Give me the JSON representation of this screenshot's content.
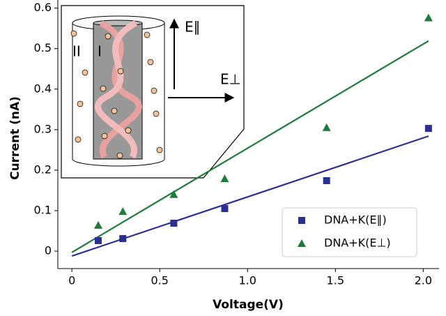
{
  "chart_data": {
    "type": "scatter",
    "xlabel": "Voltage(V)",
    "ylabel": "Current (nA)",
    "xlim": [
      -0.08,
      2.09
    ],
    "ylim": [
      -0.043,
      0.62
    ],
    "xticks": [
      0,
      0.5,
      {
        "value": 1,
        "label": "1.0"
      },
      1.5,
      {
        "value": 2,
        "label": "2.0"
      }
    ],
    "yticks": [
      0,
      0.1,
      0.2,
      0.3,
      0.4,
      0.5,
      0.6
    ],
    "legend": "lower right",
    "series": [
      {
        "name": "DNA+K(E∥)",
        "color": "#2b2f8f",
        "marker": "square",
        "x": [
          0.15,
          0.29,
          0.58,
          0.87,
          1.45,
          2.03
        ],
        "values": [
          0.026,
          0.031,
          0.069,
          0.105,
          0.174,
          0.303
        ]
      },
      {
        "name": "DNA+K(E⊥)",
        "color": "#1e7b3a",
        "marker": "triangle",
        "x": [
          0.15,
          0.29,
          0.58,
          0.87,
          1.45,
          2.03
        ],
        "values": [
          0.064,
          0.098,
          0.14,
          0.179,
          0.305,
          0.576
        ]
      }
    ],
    "fit_lines": [
      {
        "color": "#2b2f8f",
        "x": [
          0,
          2.03
        ],
        "values": [
          -0.012,
          0.284
        ]
      },
      {
        "color": "#1e7b3a",
        "x": [
          0,
          2.03
        ],
        "values": [
          -0.003,
          0.519
        ]
      }
    ],
    "inset_labels": [
      "E∥",
      "E⊥",
      "II",
      "I"
    ]
  }
}
